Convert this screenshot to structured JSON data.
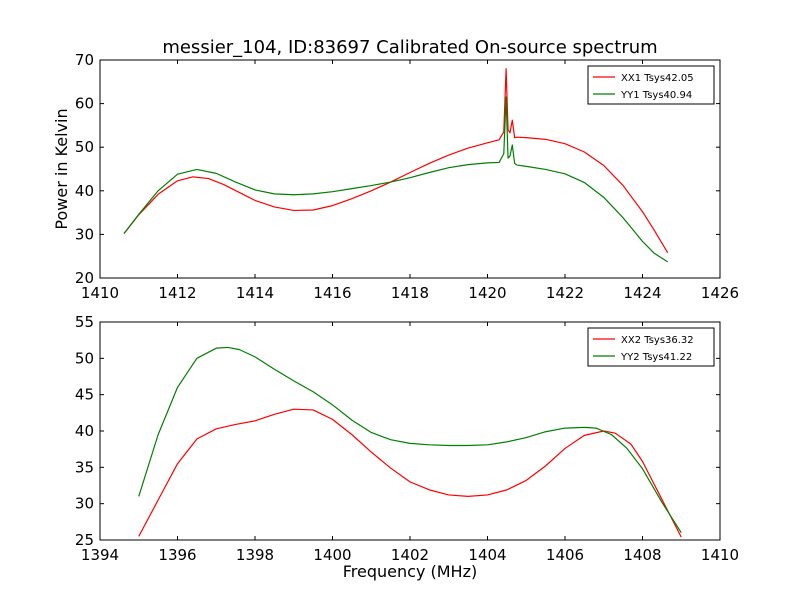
{
  "figure": {
    "title": "messier_104, ID:83697 Calibrated On-source spectrum",
    "ylabel": "Power in Kelvin",
    "xlabel": "Frequency (MHz)"
  },
  "chart_data": [
    {
      "type": "line",
      "xlim": [
        1410,
        1426
      ],
      "ylim": [
        20,
        70
      ],
      "xticks": [
        1410,
        1412,
        1414,
        1416,
        1418,
        1420,
        1422,
        1424,
        1426
      ],
      "yticks": [
        20,
        30,
        40,
        50,
        60,
        70
      ],
      "grid": false,
      "legend": "top-right",
      "series": [
        {
          "name": "XX1 Tsys42.05",
          "color": "#ff0000",
          "x": [
            1410.62,
            1411.0,
            1411.5,
            1412.0,
            1412.4,
            1412.8,
            1413.2,
            1413.6,
            1414.0,
            1414.5,
            1415.0,
            1415.5,
            1416.0,
            1416.5,
            1417.0,
            1417.5,
            1418.0,
            1418.5,
            1419.0,
            1419.5,
            1420.0,
            1420.3,
            1420.42,
            1420.48,
            1420.53,
            1420.58,
            1420.64,
            1420.7,
            1420.76,
            1421.0,
            1421.5,
            1422.0,
            1422.5,
            1423.0,
            1423.5,
            1424.0,
            1424.3,
            1424.65
          ],
          "y": [
            30.2,
            34.5,
            39.2,
            42.3,
            43.2,
            42.8,
            41.4,
            39.6,
            37.8,
            36.3,
            35.5,
            35.6,
            36.6,
            38.2,
            40.0,
            42.0,
            44.2,
            46.3,
            48.2,
            49.8,
            51.0,
            51.7,
            53.5,
            68.0,
            54.0,
            53.3,
            56.2,
            52.2,
            52.3,
            52.2,
            51.8,
            50.8,
            48.9,
            45.8,
            41.2,
            35.2,
            31.0,
            25.8
          ]
        },
        {
          "name": "YY1 Tsys40.94",
          "color": "#008000",
          "x": [
            1410.62,
            1411.0,
            1411.5,
            1412.0,
            1412.5,
            1413.0,
            1413.5,
            1414.0,
            1414.5,
            1415.0,
            1415.5,
            1416.0,
            1416.5,
            1417.0,
            1417.5,
            1418.0,
            1418.5,
            1419.0,
            1419.5,
            1420.0,
            1420.3,
            1420.42,
            1420.48,
            1420.53,
            1420.58,
            1420.64,
            1420.7,
            1420.76,
            1421.0,
            1421.5,
            1422.0,
            1422.5,
            1423.0,
            1423.5,
            1424.0,
            1424.3,
            1424.65
          ],
          "y": [
            30.2,
            34.6,
            40.0,
            43.8,
            44.9,
            44.0,
            42.0,
            40.2,
            39.3,
            39.1,
            39.3,
            39.8,
            40.5,
            41.2,
            42.0,
            43.0,
            44.2,
            45.3,
            46.0,
            46.4,
            46.5,
            48.5,
            61.5,
            47.5,
            48.0,
            50.5,
            46.3,
            45.9,
            45.6,
            44.9,
            43.9,
            41.9,
            38.5,
            33.8,
            28.4,
            25.7,
            23.7
          ]
        }
      ]
    },
    {
      "type": "line",
      "xlim": [
        1394,
        1410
      ],
      "ylim": [
        25,
        55
      ],
      "xticks": [
        1394,
        1396,
        1398,
        1400,
        1402,
        1404,
        1406,
        1408,
        1410
      ],
      "yticks": [
        25,
        30,
        35,
        40,
        45,
        50,
        55
      ],
      "grid": false,
      "legend": "top-right",
      "series": [
        {
          "name": "XX2 Tsys36.32",
          "color": "#ff0000",
          "x": [
            1395.0,
            1395.5,
            1396.0,
            1396.5,
            1397.0,
            1397.5,
            1398.0,
            1398.5,
            1399.0,
            1399.5,
            1400.0,
            1400.5,
            1401.0,
            1401.5,
            1402.0,
            1402.5,
            1403.0,
            1403.5,
            1404.0,
            1404.5,
            1405.0,
            1405.5,
            1406.0,
            1406.5,
            1407.0,
            1407.3,
            1407.7,
            1408.0,
            1408.5,
            1409.0
          ],
          "y": [
            25.5,
            30.5,
            35.5,
            38.9,
            40.3,
            40.9,
            41.4,
            42.3,
            43.0,
            42.9,
            41.6,
            39.5,
            37.1,
            34.9,
            33.0,
            31.9,
            31.2,
            31.0,
            31.2,
            31.9,
            33.2,
            35.2,
            37.6,
            39.4,
            40.0,
            39.7,
            38.2,
            35.8,
            30.6,
            25.4
          ]
        },
        {
          "name": "YY2 Tsys41.22",
          "color": "#008000",
          "x": [
            1395.0,
            1395.5,
            1396.0,
            1396.5,
            1397.0,
            1397.3,
            1397.6,
            1398.0,
            1398.5,
            1399.0,
            1399.5,
            1400.0,
            1400.5,
            1401.0,
            1401.5,
            1402.0,
            1402.5,
            1403.0,
            1403.5,
            1404.0,
            1404.5,
            1405.0,
            1405.5,
            1406.0,
            1406.5,
            1406.8,
            1407.2,
            1407.6,
            1408.0,
            1408.5,
            1409.0
          ],
          "y": [
            31.0,
            39.5,
            46.0,
            50.0,
            51.4,
            51.5,
            51.2,
            50.2,
            48.5,
            46.9,
            45.4,
            43.6,
            41.5,
            39.8,
            38.8,
            38.3,
            38.1,
            38.0,
            38.0,
            38.1,
            38.5,
            39.1,
            39.9,
            40.4,
            40.5,
            40.4,
            39.5,
            37.6,
            34.8,
            30.2,
            26.0
          ]
        }
      ]
    }
  ]
}
